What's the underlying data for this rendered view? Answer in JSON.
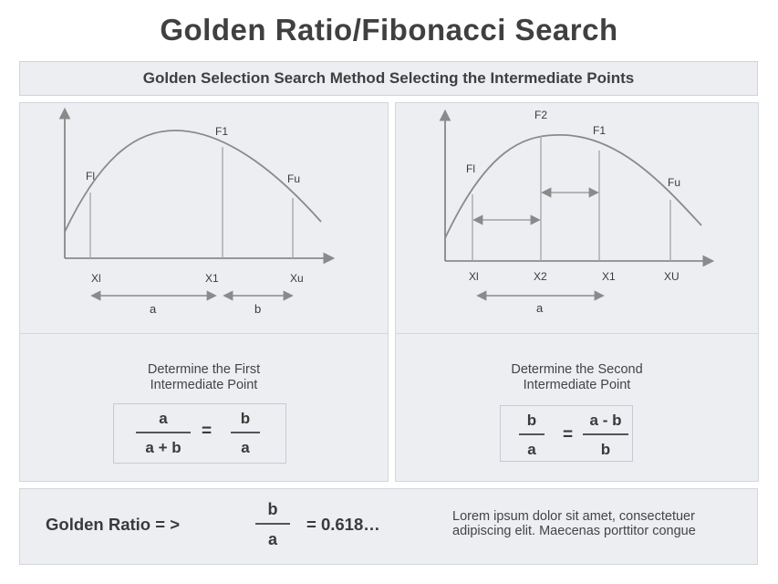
{
  "title": "Golden Ratio/Fibonacci Search",
  "subtitle": "Golden Selection Search Method Selecting the Intermediate Points",
  "left_panel": {
    "labels": {
      "fl": "Fl",
      "f1": "F1",
      "fu": "Fu",
      "xl": "Xl",
      "x1": "X1",
      "xu": "Xu",
      "a": "a",
      "b": "b"
    },
    "caption_line1": "Determine the First",
    "caption_line2": "Intermediate Point",
    "formula": {
      "lhs_num": "a",
      "lhs_den": "a + b",
      "eq": "=",
      "rhs_num": "b",
      "rhs_den": "a"
    }
  },
  "right_panel": {
    "labels": {
      "fl": "Fl",
      "f2": "F2",
      "f1": "F1",
      "fu": "Fu",
      "xl": "Xl",
      "x2": "X2",
      "x1": "X1",
      "xu": "XU",
      "a": "a"
    },
    "caption_line1": "Determine the Second",
    "caption_line2": "Intermediate Point",
    "formula": {
      "lhs_num": "b",
      "lhs_den": "a",
      "eq": "=",
      "rhs_num": "a - b",
      "rhs_den": "b"
    }
  },
  "bottom": {
    "label": "Golden Ratio = >",
    "frac_num": "b",
    "frac_den": "a",
    "value": "= 0.618…",
    "lorem": "Lorem ipsum dolor sit amet, consectetuer adipiscing elit. Maecenas porttitor congue"
  },
  "colors": {
    "panel_bg": "#eceef2",
    "curve": "#8a8a8a",
    "axis": "#7a7a7a",
    "text": "#3a3a3a"
  }
}
